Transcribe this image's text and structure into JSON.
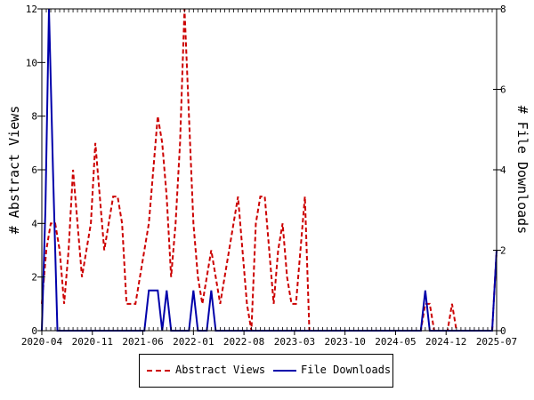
{
  "chart_data": {
    "type": "line",
    "x_labels": [
      "2020-04",
      "2020-11",
      "2021-06",
      "2022-01",
      "2022-08",
      "2023-03",
      "2023-10",
      "2024-05",
      "2024-12",
      "2025-07"
    ],
    "y_left": {
      "label": "# Abstract Views",
      "ylim": [
        0,
        12
      ],
      "ticks": [
        0,
        2,
        4,
        6,
        8,
        10,
        12
      ]
    },
    "y_right": {
      "label": "# File Downloads",
      "ylim": [
        0,
        8
      ],
      "ticks": [
        0,
        2,
        4,
        6,
        8
      ]
    },
    "series": [
      {
        "name": "Abstract Views",
        "axis": "left",
        "color": "#cc0000",
        "style": "dashed",
        "points": [
          [
            0,
            1
          ],
          [
            1,
            3
          ],
          [
            2,
            4
          ],
          [
            3,
            4
          ],
          [
            4,
            3
          ],
          [
            5,
            1
          ],
          [
            6,
            3
          ],
          [
            7,
            6
          ],
          [
            8,
            4
          ],
          [
            9,
            2
          ],
          [
            10,
            3
          ],
          [
            11,
            4
          ],
          [
            12,
            7
          ],
          [
            13,
            5
          ],
          [
            14,
            3
          ],
          [
            15,
            4
          ],
          [
            16,
            5
          ],
          [
            17,
            5
          ],
          [
            18,
            4
          ],
          [
            19,
            1
          ],
          [
            20,
            1
          ],
          [
            21,
            1
          ],
          [
            22,
            2
          ],
          [
            23,
            3
          ],
          [
            24,
            4
          ],
          [
            25,
            6
          ],
          [
            26,
            8
          ],
          [
            27,
            7
          ],
          [
            28,
            5
          ],
          [
            29,
            2
          ],
          [
            30,
            4
          ],
          [
            31,
            7
          ],
          [
            32,
            12
          ],
          [
            33,
            8
          ],
          [
            34,
            4
          ],
          [
            35,
            2
          ],
          [
            36,
            1
          ],
          [
            37,
            2
          ],
          [
            38,
            3
          ],
          [
            39,
            2
          ],
          [
            40,
            1
          ],
          [
            41,
            2
          ],
          [
            42,
            3
          ],
          [
            43,
            4
          ],
          [
            44,
            5
          ],
          [
            45,
            3
          ],
          [
            46,
            1
          ],
          [
            47,
            0
          ],
          [
            48,
            4
          ],
          [
            49,
            5
          ],
          [
            50,
            5
          ],
          [
            51,
            3
          ],
          [
            52,
            1
          ],
          [
            53,
            3
          ],
          [
            54,
            4
          ],
          [
            55,
            2
          ],
          [
            56,
            1
          ],
          [
            57,
            1
          ],
          [
            58,
            3
          ],
          [
            59,
            5
          ],
          [
            60,
            0
          ],
          [
            61,
            0
          ],
          [
            62,
            0
          ],
          [
            63,
            0
          ],
          [
            64,
            0
          ],
          [
            65,
            0
          ],
          [
            66,
            0
          ],
          [
            67,
            0
          ],
          [
            68,
            0
          ],
          [
            69,
            0
          ],
          [
            70,
            0
          ],
          [
            71,
            0
          ],
          [
            72,
            0
          ],
          [
            73,
            0
          ],
          [
            74,
            0
          ],
          [
            75,
            0
          ],
          [
            76,
            0
          ],
          [
            77,
            0
          ],
          [
            78,
            0
          ],
          [
            79,
            0
          ],
          [
            80,
            0
          ],
          [
            81,
            0
          ],
          [
            82,
            0
          ],
          [
            83,
            0
          ],
          [
            84,
            0
          ],
          [
            85,
            0
          ],
          [
            86,
            1
          ],
          [
            87,
            1
          ],
          [
            88,
            0
          ],
          [
            89,
            0
          ],
          [
            90,
            0
          ],
          [
            91,
            0
          ],
          [
            92,
            1
          ],
          [
            93,
            0
          ],
          [
            94,
            0
          ],
          [
            95,
            0
          ],
          [
            96,
            0
          ],
          [
            97,
            0
          ],
          [
            98,
            0
          ],
          [
            99,
            0
          ],
          [
            100,
            0
          ],
          [
            101,
            0
          ],
          [
            102,
            3
          ]
        ]
      },
      {
        "name": "File Downloads",
        "axis": "right",
        "color": "#0000aa",
        "style": "solid",
        "points": [
          [
            0,
            0
          ],
          [
            0.8,
            3
          ],
          [
            1.6,
            8
          ],
          [
            2.5,
            4
          ],
          [
            3.5,
            0
          ],
          [
            4,
            0
          ],
          [
            5,
            0
          ],
          [
            6,
            0
          ],
          [
            7,
            0
          ],
          [
            8,
            0
          ],
          [
            9,
            0
          ],
          [
            10,
            0
          ],
          [
            11,
            0
          ],
          [
            12,
            0
          ],
          [
            13,
            0
          ],
          [
            14,
            0
          ],
          [
            15,
            0
          ],
          [
            16,
            0
          ],
          [
            17,
            0
          ],
          [
            18,
            0
          ],
          [
            19,
            0
          ],
          [
            20,
            0
          ],
          [
            21,
            0
          ],
          [
            22,
            0
          ],
          [
            23,
            0
          ],
          [
            24,
            1
          ],
          [
            25,
            1
          ],
          [
            26,
            1
          ],
          [
            27,
            0
          ],
          [
            28,
            1
          ],
          [
            29,
            0
          ],
          [
            30,
            0
          ],
          [
            31,
            0
          ],
          [
            32,
            0
          ],
          [
            33,
            0
          ],
          [
            34,
            1
          ],
          [
            35,
            0
          ],
          [
            36,
            0
          ],
          [
            37,
            0
          ],
          [
            38,
            1
          ],
          [
            39,
            0
          ],
          [
            40,
            0
          ],
          [
            41,
            0
          ],
          [
            42,
            0
          ],
          [
            43,
            0
          ],
          [
            44,
            0
          ],
          [
            45,
            0
          ],
          [
            46,
            0
          ],
          [
            47,
            0
          ],
          [
            48,
            0
          ],
          [
            49,
            0
          ],
          [
            50,
            0
          ],
          [
            51,
            0
          ],
          [
            52,
            0
          ],
          [
            53,
            0
          ],
          [
            54,
            0
          ],
          [
            55,
            0
          ],
          [
            56,
            0
          ],
          [
            57,
            0
          ],
          [
            58,
            0
          ],
          [
            59,
            0
          ],
          [
            60,
            0
          ],
          [
            61,
            0
          ],
          [
            62,
            0
          ],
          [
            63,
            0
          ],
          [
            64,
            0
          ],
          [
            65,
            0
          ],
          [
            66,
            0
          ],
          [
            67,
            0
          ],
          [
            68,
            0
          ],
          [
            69,
            0
          ],
          [
            70,
            0
          ],
          [
            71,
            0
          ],
          [
            72,
            0
          ],
          [
            73,
            0
          ],
          [
            74,
            0
          ],
          [
            75,
            0
          ],
          [
            76,
            0
          ],
          [
            77,
            0
          ],
          [
            78,
            0
          ],
          [
            79,
            0
          ],
          [
            80,
            0
          ],
          [
            81,
            0
          ],
          [
            82,
            0
          ],
          [
            83,
            0
          ],
          [
            84,
            0
          ],
          [
            85,
            0
          ],
          [
            86,
            1
          ],
          [
            87,
            0
          ],
          [
            88,
            0
          ],
          [
            89,
            0
          ],
          [
            90,
            0
          ],
          [
            91,
            0
          ],
          [
            92,
            0
          ],
          [
            93,
            0
          ],
          [
            94,
            0
          ],
          [
            95,
            0
          ],
          [
            96,
            0
          ],
          [
            97,
            0
          ],
          [
            98,
            0
          ],
          [
            99,
            0
          ],
          [
            100,
            0
          ],
          [
            101,
            0
          ],
          [
            102,
            2
          ]
        ]
      }
    ],
    "legend_position": "bottom",
    "grid": false
  }
}
